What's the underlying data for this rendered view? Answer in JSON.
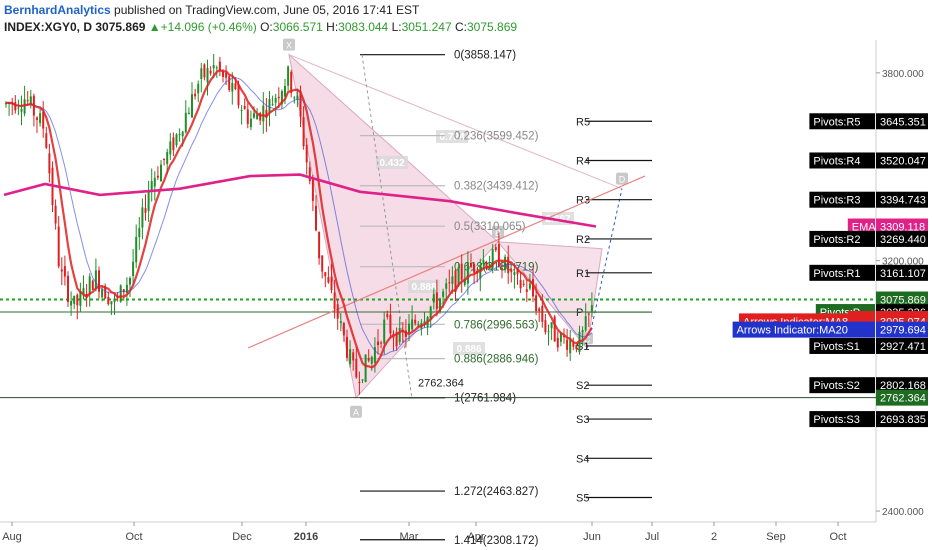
{
  "header": {
    "author": "BernhardAnalytics",
    "published": " published on TradingView.com, June 05, 2016 17:41 EST",
    "symbol": "INDEX:XGY0, D",
    "last": "3075.869",
    "change": "+14.096 (+0.46%)",
    "o_label": "O:",
    "o_val": "3066.571",
    "h_label": "H:",
    "h_val": "3083.044",
    "l_label": "L:",
    "l_val": "3051.247",
    "c_label": "C:",
    "c_val": "3075.869"
  },
  "colors": {
    "up": "#1f8f2a",
    "down": "#e02020",
    "ema": "#e0218a",
    "ma8": "#e02020",
    "ma20": "#3344dd",
    "pattern_fill": "#f3d3e0",
    "dotted": "#21a321"
  },
  "chart_data": {
    "type": "candlestick",
    "y_range": [
      2365,
      3905
    ],
    "y_ticks": [
      {
        "value": 3800,
        "label": "3800.000"
      },
      {
        "value": 3200,
        "label": "3200.000"
      },
      {
        "value": 3000,
        "label": "3000.000"
      },
      {
        "value": 2400,
        "label": "2400.000"
      }
    ],
    "x_ticks": [
      {
        "label": "Aug",
        "bold": false
      },
      {
        "label": "Oct",
        "bold": false
      },
      {
        "label": "Dec",
        "bold": false
      },
      {
        "label": "2016",
        "bold": true
      },
      {
        "label": "Mar",
        "bold": false
      },
      {
        "label": "Apr",
        "bold": false
      },
      {
        "label": "Jun",
        "bold": false
      },
      {
        "label": "Jul",
        "bold": false
      },
      {
        "label": "2",
        "bold": false
      },
      {
        "label": "Sep",
        "bold": false
      },
      {
        "label": "Oct",
        "bold": false
      }
    ],
    "fib_levels": [
      {
        "label": "0(3858.147)",
        "value": 3858.147
      },
      {
        "label": "0.236(3599.452)",
        "value": 3599.452
      },
      {
        "label": "0.382(3439.412)",
        "value": 3439.412
      },
      {
        "label": "0.5(3310.065)",
        "value": 3310.065
      },
      {
        "label": "0.618(3180.719)",
        "value": 3180.719
      },
      {
        "label": "0.786(2996.563)",
        "value": 2996.563
      },
      {
        "label": "0.886(2886.946)",
        "value": 2886.946
      },
      {
        "label": "1(2761.984)",
        "value": 2761.984
      },
      {
        "label": "1.272(2463.827)",
        "value": 2463.827
      },
      {
        "label": "1.414(2308.172)",
        "value": 2308.172
      }
    ],
    "pivot_levels": [
      {
        "label": "R5",
        "value": 3645.351
      },
      {
        "label": "R4",
        "value": 3520.047
      },
      {
        "label": "R3",
        "value": 3394.743
      },
      {
        "label": "R2",
        "value": 3269.44
      },
      {
        "label": "R1",
        "value": 3161.107
      },
      {
        "label": "P",
        "value": 3035.804
      },
      {
        "label": "S1",
        "value": 2927.471
      },
      {
        "label": "S2",
        "value": 2802.168
      },
      {
        "label": "S3",
        "value": 2693.835
      },
      {
        "label": "S4",
        "value": 2568.531
      },
      {
        "label": "S5",
        "value": 2443.227
      }
    ],
    "pattern_points": [
      {
        "label": "X",
        "value": 3858.147
      },
      {
        "label": "A",
        "value": 2761.984
      },
      {
        "label": "B",
        "value": 3260
      },
      {
        "label": "C",
        "value": 2920
      },
      {
        "label": "D",
        "value": 3430
      }
    ],
    "ratio_labels": [
      "0.724",
      "0.432",
      "2.667",
      "0.888",
      "0.886"
    ],
    "low_label": "2762.364",
    "price_tags": [
      {
        "text": "Pivots:R5",
        "value": "3645.351",
        "price": 3645.351,
        "bg": "#000000"
      },
      {
        "text": "Pivots:R4",
        "value": "3520.047",
        "price": 3520.047,
        "bg": "#000000"
      },
      {
        "text": "Pivots:R3",
        "value": "3394.743",
        "price": 3394.743,
        "bg": "#000000"
      },
      {
        "text": "EMA",
        "value": "3309.118",
        "price": 3309.118,
        "bg": "#e0218a"
      },
      {
        "text": "Pivots:R2",
        "value": "3269.440",
        "price": 3269.44,
        "bg": "#000000"
      },
      {
        "text": "Pivots:R1",
        "value": "3161.107",
        "price": 3161.107,
        "bg": "#000000"
      },
      {
        "text": "",
        "value": "3075.869",
        "price": 3075.869,
        "bg": "#1e6b22"
      },
      {
        "text": "Pivots:P",
        "value": "3035.804",
        "price": 3035.804,
        "bg": "#1e6b22"
      },
      {
        "text": "",
        "value": "3035.336",
        "price": 3035.336,
        "bg": "#000000"
      },
      {
        "text": "EMA",
        "value": "3013.573",
        "price": 3013.573,
        "bg": "#e02020"
      },
      {
        "text": "Arrows Indicator:MA8",
        "value": "3005.974",
        "price": 3005.974,
        "bg": "#e02020"
      },
      {
        "text": "Arrows Indicator:MA20",
        "value": "2979.694",
        "price": 2979.694,
        "bg": "#2233cc"
      },
      {
        "text": "Pivots:S1",
        "value": "2927.471",
        "price": 2927.471,
        "bg": "#000000"
      },
      {
        "text": "Pivots:S2",
        "value": "2802.168",
        "price": 2802.168,
        "bg": "#000000"
      },
      {
        "text": "",
        "value": "2762.364",
        "price": 2762.364,
        "bg": "#1e6b22"
      },
      {
        "text": "Pivots:S3",
        "value": "2693.835",
        "price": 2693.835,
        "bg": "#000000"
      }
    ]
  }
}
